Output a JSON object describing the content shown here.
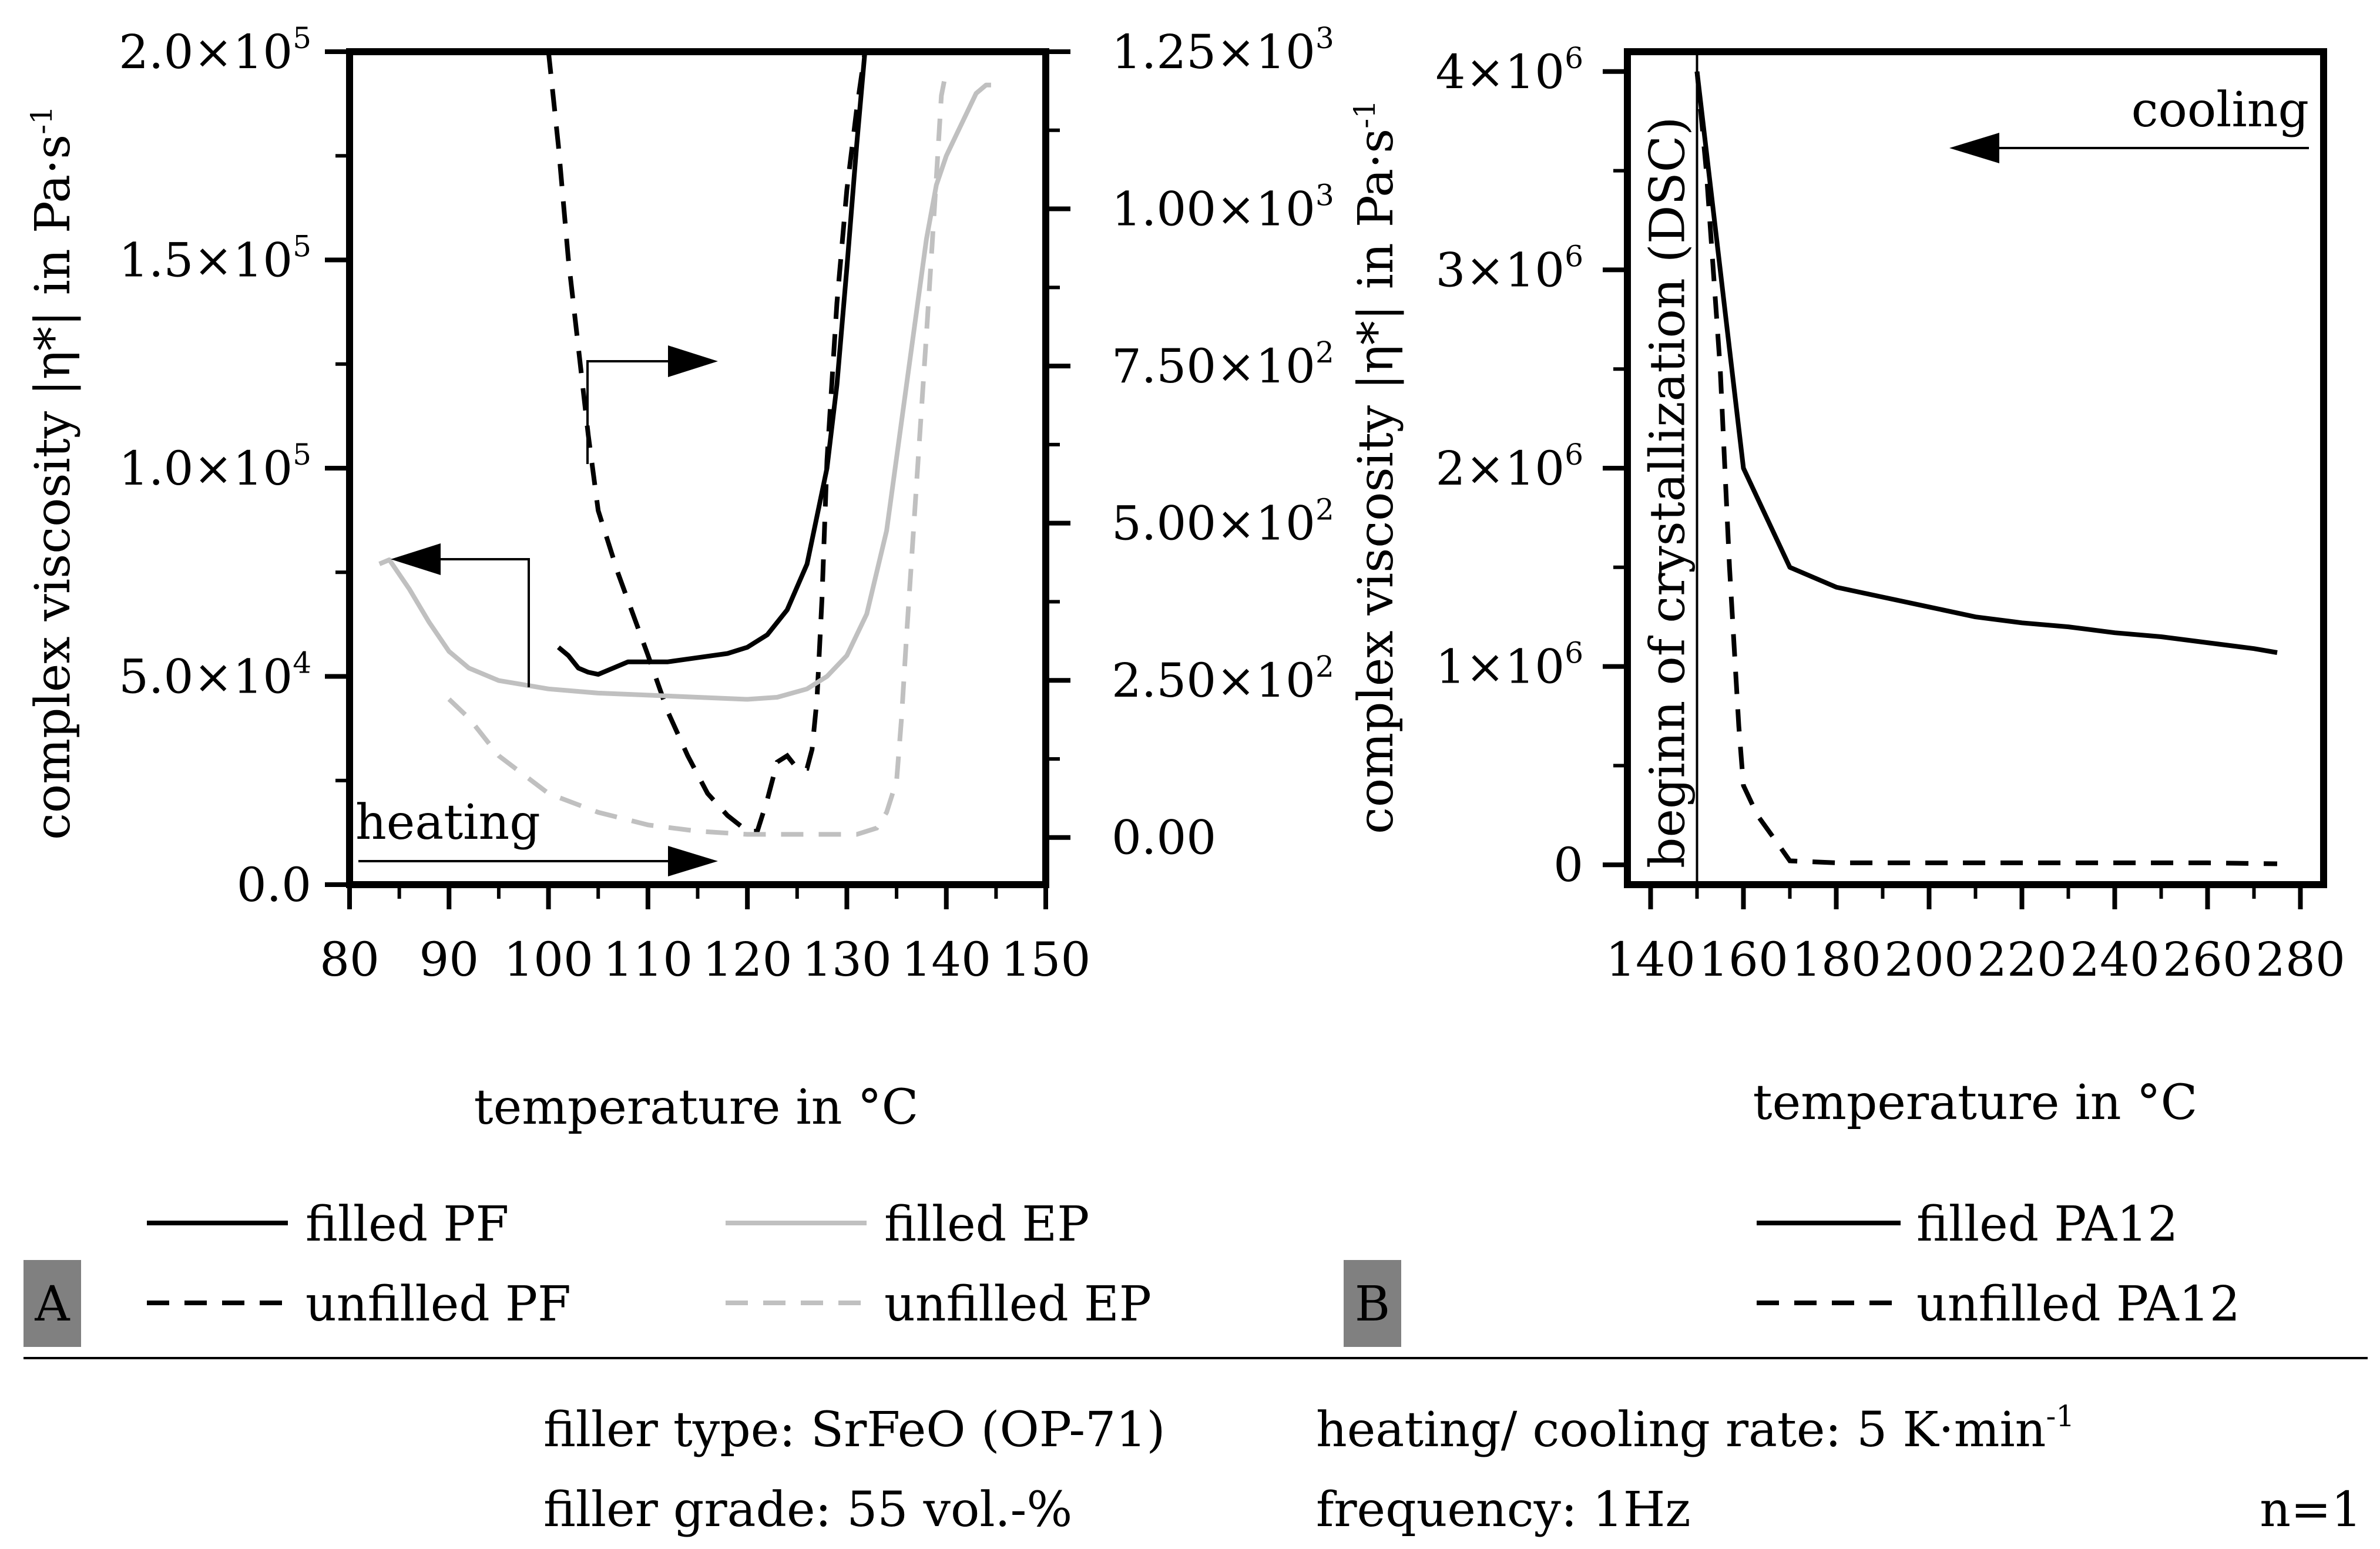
{
  "chart_data": [
    {
      "panel": "A",
      "type": "line",
      "xlabel": "temperature in °C",
      "ylabel": "complex viscosity |η*| in Pa·s",
      "ylabel_sup": "-1",
      "xlim": [
        80,
        150
      ],
      "xticks": [
        "80",
        "90",
        "100",
        "110",
        "120",
        "130",
        "140",
        "150"
      ],
      "ylim_left": [
        0,
        200000
      ],
      "yticks_left": [
        {
          "m": "0.0",
          "e": ""
        },
        {
          "m": "5.0×10",
          "e": "4"
        },
        {
          "m": "1.0×10",
          "e": "5"
        },
        {
          "m": "1.5×10",
          "e": "5"
        },
        {
          "m": "2.0×10",
          "e": "5"
        }
      ],
      "ylim_right": [
        -75,
        1250
      ],
      "yticks_right": [
        {
          "m": "0.00",
          "e": ""
        },
        {
          "m": "2.50×10",
          "e": "2"
        },
        {
          "m": "5.00×10",
          "e": "2"
        },
        {
          "m": "7.50×10",
          "e": "2"
        },
        {
          "m": "1.00×10",
          "e": "3"
        },
        {
          "m": "1.25×10",
          "e": "3"
        }
      ],
      "annotation": "heating",
      "series": [
        {
          "name": "filled PF",
          "axis": "left",
          "color": "#000000",
          "dash": "solid",
          "x": [
            101,
            102,
            103,
            104,
            105,
            106,
            107,
            108,
            110,
            112,
            115,
            118,
            120,
            122,
            124,
            126,
            128,
            129,
            130,
            131,
            132
          ],
          "y": [
            57000,
            55000,
            52000,
            51000,
            50500,
            51500,
            52500,
            53500,
            53500,
            53500,
            54500,
            55500,
            57000,
            60000,
            66000,
            77000,
            100000,
            120000,
            148000,
            178000,
            205000
          ]
        },
        {
          "name": "unfilled PF",
          "axis": "right",
          "color": "#000000",
          "dash": "dashed",
          "x": [
            100,
            101,
            102,
            103,
            104,
            105,
            107,
            110,
            112,
            114,
            116,
            118,
            120,
            121,
            122,
            123,
            124,
            125,
            126,
            126.5,
            127,
            127.5,
            128,
            129,
            130,
            131,
            132
          ],
          "y": [
            1250,
            1100,
            920,
            780,
            640,
            520,
            420,
            290,
            200,
            130,
            70,
            35,
            10,
            10,
            60,
            120,
            130,
            110,
            110,
            140,
            220,
            380,
            600,
            850,
            1030,
            1160,
            1270
          ]
        },
        {
          "name": "filled EP",
          "axis": "left",
          "color": "#c0c0c0",
          "dash": "solid",
          "x": [
            83,
            84,
            86,
            88,
            90,
            92,
            95,
            100,
            105,
            110,
            115,
            120,
            123,
            126,
            128,
            130,
            132,
            134,
            136,
            138,
            139,
            140,
            141,
            142,
            143,
            144,
            144.5
          ],
          "y": [
            77000,
            78000,
            71000,
            63000,
            56000,
            52000,
            49000,
            47000,
            46000,
            45500,
            45000,
            44500,
            45000,
            47000,
            50000,
            55000,
            65000,
            85000,
            120000,
            155000,
            168000,
            175000,
            180000,
            185000,
            190000,
            192000,
            192000
          ]
        },
        {
          "name": "unfilled EP",
          "axis": "right",
          "color": "#c0c0c0",
          "dash": "dashed",
          "x": [
            90,
            92,
            95,
            100,
            105,
            110,
            115,
            120,
            125,
            128,
            131,
            133,
            134,
            135,
            135.5,
            136,
            137,
            138,
            139,
            139.5,
            140
          ],
          "y": [
            220,
            190,
            130,
            70,
            40,
            20,
            10,
            5,
            5,
            5,
            5,
            15,
            40,
            90,
            190,
            320,
            560,
            800,
            1050,
            1180,
            1220
          ]
        }
      ],
      "legend": [
        "filled PF",
        "unfilled PF",
        "filled EP",
        "unfilled EP"
      ]
    },
    {
      "panel": "B",
      "type": "line",
      "xlabel": "temperature in °C",
      "ylabel": "complex viscosity |η*| in Pa·s",
      "ylabel_sup": "-1",
      "xlim": [
        135,
        285
      ],
      "xticks": [
        "140",
        "160",
        "180",
        "200",
        "220",
        "240",
        "260",
        "280"
      ],
      "ylim": [
        -100000,
        4100000
      ],
      "yticks": [
        {
          "m": "0",
          "e": ""
        },
        {
          "m": "1×10",
          "e": "6"
        },
        {
          "m": "2×10",
          "e": "6"
        },
        {
          "m": "3×10",
          "e": "6"
        },
        {
          "m": "4×10",
          "e": "6"
        }
      ],
      "vline_x": 150,
      "vline_label": "beginn of crystallization (DSC)",
      "annotation": "cooling",
      "series": [
        {
          "name": "filled PA12",
          "color": "#000000",
          "dash": "solid",
          "x": [
            150,
            152,
            155,
            160,
            170,
            180,
            190,
            200,
            210,
            220,
            230,
            240,
            250,
            260,
            270,
            275
          ],
          "y": [
            4000000,
            3600000,
            3000000,
            2000000,
            1500000,
            1400000,
            1350000,
            1300000,
            1250000,
            1220000,
            1200000,
            1170000,
            1150000,
            1120000,
            1090000,
            1070000
          ]
        },
        {
          "name": "unfilled PA12",
          "color": "#000000",
          "dash": "dashed",
          "x": [
            150,
            152,
            155,
            157,
            159,
            160,
            163,
            167,
            170,
            180,
            200,
            220,
            240,
            260,
            275
          ],
          "y": [
            4000000,
            3500000,
            2500000,
            1500000,
            700000,
            400000,
            250000,
            120000,
            20000,
            10000,
            10000,
            10000,
            10000,
            10000,
            5000
          ]
        }
      ],
      "legend": [
        "filled PA12",
        "unfilled PA12"
      ]
    }
  ],
  "panel_labels": {
    "a": "A",
    "b": "B"
  },
  "footer": {
    "filler_type": "filler type: SrFeO (OP-71)",
    "filler_grade": "filler grade: 55 vol.-%",
    "rate": "heating/ cooling rate: 5 K·min",
    "rate_sup": "-1",
    "frequency": "frequency: 1Hz",
    "n": "n=1"
  }
}
